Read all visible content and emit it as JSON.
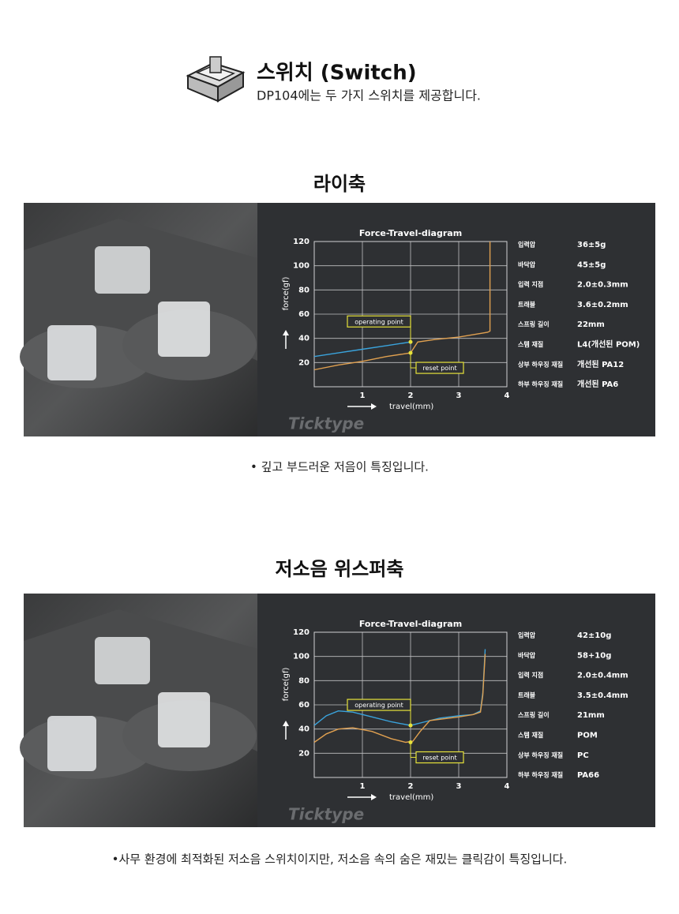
{
  "header": {
    "title": "스위치 (Switch)",
    "subtitle": "DP104에는 두 가지 스위치를 제공합니다."
  },
  "sections": [
    {
      "title": "라이축",
      "watermark": "Ticktype",
      "chart": {
        "type": "line",
        "title": "Force-Travel-diagram",
        "x_label": "travel(mm)",
        "y_label": "force(gf)",
        "xlim": [
          0,
          4
        ],
        "ylim": [
          0,
          120
        ],
        "xticks": [
          1,
          2,
          3,
          4
        ],
        "yticks": [
          20,
          40,
          60,
          80,
          100,
          120
        ],
        "grid": true,
        "series": [
          {
            "color": "#3aa3dc",
            "x": [
              0,
              0.5,
              1,
              1.5,
              2
            ],
            "values": [
              25,
              28,
              31,
              34,
              37
            ]
          },
          {
            "color": "#e0a050",
            "x": [
              0,
              0.5,
              1,
              1.5,
              2,
              2.15,
              2.5,
              3,
              3.6,
              3.65,
              3.65
            ],
            "values": [
              14,
              18,
              21,
              25,
              28,
              37,
              39,
              41,
              45,
              46,
              120
            ]
          }
        ],
        "annotations": [
          {
            "text": "operating point",
            "x": 2,
            "y": 37
          },
          {
            "text": "reset point",
            "x": 2,
            "y": 28
          }
        ]
      },
      "specs": [
        [
          "입력압",
          "36±5g"
        ],
        [
          "바닥압",
          "45±5g"
        ],
        [
          "입력 지점",
          "2.0±0.3mm"
        ],
        [
          "트래블",
          "3.6±0.2mm"
        ],
        [
          "스프링 길이",
          "22mm"
        ],
        [
          "스템 재질",
          "L4(개선된 POM)"
        ],
        [
          "상부 하우징 재질",
          "개선된 PA12"
        ],
        [
          "하부 하우징 재질",
          "개선된 PA6"
        ]
      ],
      "caption": "• 깊고 부드러운 저음이 특징입니다."
    },
    {
      "title": "저소음 위스퍼축",
      "watermark": "Ticktype",
      "chart": {
        "type": "line",
        "title": "Force-Travel-diagram",
        "x_label": "travel(mm)",
        "y_label": "force(gf)",
        "xlim": [
          0,
          4
        ],
        "ylim": [
          0,
          120
        ],
        "xticks": [
          1,
          2,
          3,
          4
        ],
        "yticks": [
          20,
          40,
          60,
          80,
          100,
          120
        ],
        "grid": true,
        "series": [
          {
            "color": "#3aa3dc",
            "x": [
              0,
              0.25,
              0.5,
              0.8,
              1.2,
              1.6,
              2,
              2.3,
              2.6,
              3,
              3.3,
              3.45,
              3.5,
              3.55
            ],
            "values": [
              43,
              51,
              55,
              54,
              50,
              46,
              43,
              46,
              49,
              51,
              52,
              55,
              70,
              106
            ]
          },
          {
            "color": "#e0a050",
            "x": [
              0,
              0.25,
              0.5,
              0.8,
              1.2,
              1.6,
              1.9,
              2.05,
              2.2,
              2.4,
              3,
              3.3,
              3.45,
              3.5,
              3.55
            ],
            "values": [
              29,
              36,
              40,
              41,
              38,
              32,
              29,
              30,
              38,
              47,
              50,
              52,
              54,
              68,
              102
            ]
          }
        ],
        "annotations": [
          {
            "text": "operating point",
            "x": 2,
            "y": 43
          },
          {
            "text": "reset point",
            "x": 2,
            "y": 29
          }
        ]
      },
      "specs": [
        [
          "입력압",
          "42±10g"
        ],
        [
          "바닥압",
          "58+10g"
        ],
        [
          "입력 지점",
          "2.0±0.4mm"
        ],
        [
          "트래블",
          "3.5±0.4mm"
        ],
        [
          "스프링 길이",
          "21mm"
        ],
        [
          "스템 재질",
          "POM"
        ],
        [
          "상부 하우징 재질",
          "PC"
        ],
        [
          "하부 하우징 재질",
          "PA66"
        ]
      ],
      "caption": "•사무 환경에 최적화된 저소음 스위치이지만, 저소음 속의 숨은 재밌는 클릭감이 특징입니다."
    }
  ]
}
